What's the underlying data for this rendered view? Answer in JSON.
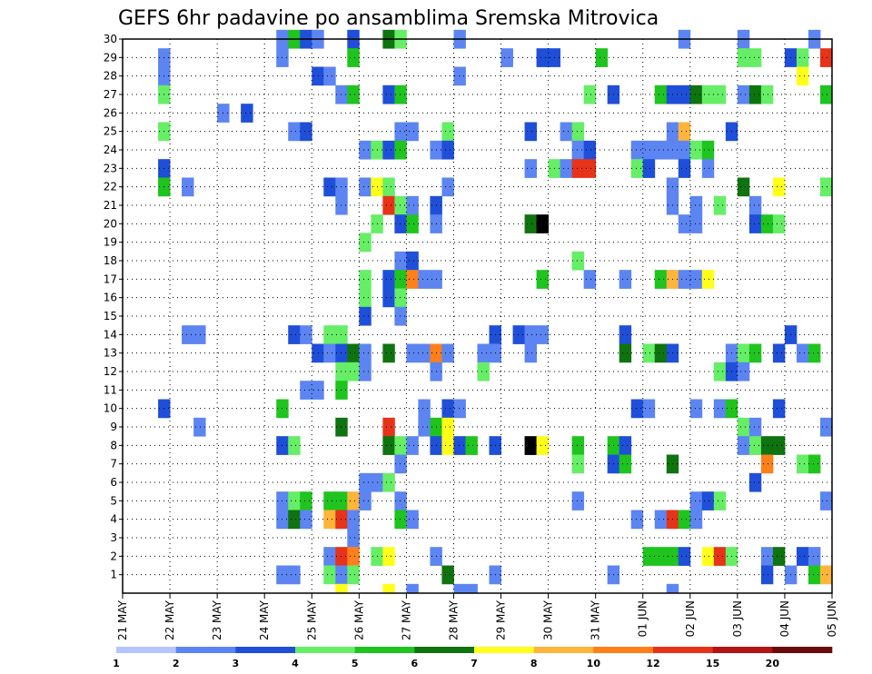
{
  "chart_data": {
    "type": "heatmap",
    "title": "GEFS 6hr padavine po ansamblima Sremska Mitrovica",
    "xlabel": "",
    "ylabel": "",
    "x_ticks": [
      "21 MAY",
      "22 MAY",
      "23 MAY",
      "24 MAY",
      "25 MAY",
      "26 MAY",
      "27 MAY",
      "28 MAY",
      "29 MAY",
      "30 MAY",
      "31 MAY",
      "01 JUN",
      "02 JUN",
      "03 JUN",
      "04 JUN",
      "05 JUN"
    ],
    "y_ticks": [
      1,
      2,
      3,
      4,
      5,
      6,
      7,
      8,
      9,
      10,
      11,
      12,
      13,
      14,
      15,
      16,
      17,
      18,
      19,
      20,
      21,
      22,
      23,
      24,
      25,
      26,
      27,
      28,
      29,
      30
    ],
    "x_range": [
      0,
      60
    ],
    "y_range": [
      0,
      30
    ],
    "grid": true,
    "colorbar": {
      "labels": [
        "1",
        "2",
        "3",
        "4",
        "5",
        "6",
        "7",
        "8",
        "10",
        "12",
        "15",
        "20"
      ],
      "colors": [
        "#b3c6ff",
        "#5c85f2",
        "#1f4fd9",
        "#66ee66",
        "#1fc41f",
        "#0f730f",
        "#ffff1a",
        "#ffb43a",
        "#ff7f1a",
        "#e63319",
        "#b31313",
        "#6b0a0a"
      ]
    },
    "cells": [
      [
        30,
        13,
        1
      ],
      [
        30,
        14,
        4
      ],
      [
        30,
        15,
        2
      ],
      [
        30,
        16,
        1
      ],
      [
        30,
        19,
        2
      ],
      [
        30,
        22,
        5
      ],
      [
        30,
        23,
        3
      ],
      [
        30,
        28,
        1
      ],
      [
        30,
        47,
        1
      ],
      [
        30,
        52,
        1
      ],
      [
        30,
        58,
        1
      ],
      [
        29,
        3,
        1
      ],
      [
        29,
        13,
        1
      ],
      [
        29,
        19,
        4
      ],
      [
        29,
        32,
        1
      ],
      [
        29,
        35,
        2
      ],
      [
        29,
        36,
        2
      ],
      [
        29,
        40,
        4
      ],
      [
        29,
        52,
        3
      ],
      [
        29,
        53,
        3
      ],
      [
        29,
        56,
        2
      ],
      [
        29,
        57,
        3
      ],
      [
        29,
        59,
        9
      ],
      [
        28,
        3,
        1
      ],
      [
        28,
        16,
        2
      ],
      [
        28,
        17,
        1
      ],
      [
        28,
        28,
        1
      ],
      [
        28,
        57,
        6
      ],
      [
        27,
        3,
        3
      ],
      [
        27,
        18,
        1
      ],
      [
        27,
        19,
        4
      ],
      [
        27,
        22,
        2
      ],
      [
        27,
        23,
        4
      ],
      [
        27,
        39,
        3
      ],
      [
        27,
        41,
        2
      ],
      [
        27,
        45,
        4
      ],
      [
        27,
        46,
        2
      ],
      [
        27,
        47,
        2
      ],
      [
        27,
        48,
        5
      ],
      [
        27,
        49,
        3
      ],
      [
        27,
        50,
        3
      ],
      [
        27,
        52,
        1
      ],
      [
        27,
        53,
        5
      ],
      [
        27,
        54,
        3
      ],
      [
        27,
        59,
        4
      ],
      [
        26,
        8,
        1
      ],
      [
        26,
        10,
        2
      ],
      [
        25,
        3,
        3
      ],
      [
        25,
        14,
        1
      ],
      [
        25,
        15,
        2
      ],
      [
        25,
        23,
        1
      ],
      [
        25,
        24,
        1
      ],
      [
        25,
        27,
        3
      ],
      [
        25,
        34,
        2
      ],
      [
        25,
        37,
        1
      ],
      [
        25,
        38,
        3
      ],
      [
        25,
        46,
        1
      ],
      [
        25,
        47,
        7
      ],
      [
        25,
        51,
        2
      ],
      [
        24,
        20,
        1
      ],
      [
        24,
        21,
        3
      ],
      [
        24,
        22,
        2
      ],
      [
        24,
        23,
        4
      ],
      [
        24,
        26,
        1
      ],
      [
        24,
        27,
        2
      ],
      [
        24,
        38,
        1
      ],
      [
        24,
        39,
        2
      ],
      [
        24,
        43,
        1
      ],
      [
        24,
        44,
        1
      ],
      [
        24,
        45,
        1
      ],
      [
        24,
        46,
        1
      ],
      [
        24,
        47,
        1
      ],
      [
        24,
        48,
        3
      ],
      [
        24,
        49,
        4
      ],
      [
        23,
        3,
        2
      ],
      [
        23,
        34,
        1
      ],
      [
        23,
        36,
        3
      ],
      [
        23,
        37,
        1
      ],
      [
        23,
        38,
        9
      ],
      [
        23,
        39,
        9
      ],
      [
        23,
        43,
        3
      ],
      [
        23,
        44,
        2
      ],
      [
        23,
        47,
        2
      ],
      [
        23,
        49,
        1
      ],
      [
        22,
        3,
        4
      ],
      [
        22,
        5,
        1
      ],
      [
        22,
        17,
        2
      ],
      [
        22,
        18,
        1
      ],
      [
        22,
        20,
        1
      ],
      [
        22,
        21,
        6
      ],
      [
        22,
        22,
        3
      ],
      [
        22,
        27,
        1
      ],
      [
        22,
        46,
        1
      ],
      [
        22,
        52,
        5
      ],
      [
        22,
        55,
        6
      ],
      [
        22,
        59,
        3
      ],
      [
        21,
        18,
        1
      ],
      [
        21,
        22,
        9
      ],
      [
        21,
        23,
        3
      ],
      [
        21,
        24,
        1
      ],
      [
        21,
        26,
        2
      ],
      [
        21,
        46,
        1
      ],
      [
        21,
        48,
        1
      ],
      [
        21,
        50,
        3
      ],
      [
        21,
        53,
        1
      ],
      [
        20,
        21,
        3
      ],
      [
        20,
        23,
        2
      ],
      [
        20,
        24,
        4
      ],
      [
        20,
        26,
        1
      ],
      [
        20,
        34,
        5
      ],
      [
        20,
        35,
        12
      ],
      [
        20,
        47,
        1
      ],
      [
        20,
        48,
        1
      ],
      [
        20,
        53,
        2
      ],
      [
        20,
        54,
        4
      ],
      [
        20,
        55,
        3
      ],
      [
        19,
        20,
        3
      ],
      [
        18,
        23,
        1
      ],
      [
        18,
        24,
        2
      ],
      [
        18,
        38,
        3
      ],
      [
        17,
        20,
        3
      ],
      [
        17,
        22,
        2
      ],
      [
        17,
        23,
        4
      ],
      [
        17,
        24,
        8
      ],
      [
        17,
        25,
        1
      ],
      [
        17,
        26,
        1
      ],
      [
        17,
        35,
        4
      ],
      [
        17,
        39,
        1
      ],
      [
        17,
        42,
        1
      ],
      [
        17,
        45,
        4
      ],
      [
        17,
        46,
        7
      ],
      [
        17,
        47,
        1
      ],
      [
        17,
        48,
        1
      ],
      [
        17,
        49,
        6
      ],
      [
        16,
        20,
        3
      ],
      [
        16,
        22,
        2
      ],
      [
        16,
        23,
        3
      ],
      [
        15,
        20,
        2
      ],
      [
        15,
        23,
        1
      ],
      [
        14,
        5,
        1
      ],
      [
        14,
        6,
        1
      ],
      [
        14,
        14,
        2
      ],
      [
        14,
        15,
        1
      ],
      [
        14,
        17,
        3
      ],
      [
        14,
        18,
        3
      ],
      [
        14,
        31,
        2
      ],
      [
        14,
        33,
        2
      ],
      [
        14,
        34,
        1
      ],
      [
        14,
        35,
        1
      ],
      [
        14,
        42,
        2
      ],
      [
        14,
        56,
        2
      ],
      [
        13,
        16,
        2
      ],
      [
        13,
        17,
        1
      ],
      [
        13,
        18,
        2
      ],
      [
        13,
        19,
        5
      ],
      [
        13,
        20,
        1
      ],
      [
        13,
        22,
        5
      ],
      [
        13,
        24,
        1
      ],
      [
        13,
        25,
        1
      ],
      [
        13,
        26,
        8
      ],
      [
        13,
        27,
        1
      ],
      [
        13,
        30,
        1
      ],
      [
        13,
        31,
        1
      ],
      [
        13,
        34,
        1
      ],
      [
        13,
        42,
        5
      ],
      [
        13,
        44,
        3
      ],
      [
        13,
        45,
        5
      ],
      [
        13,
        46,
        2
      ],
      [
        13,
        51,
        1
      ],
      [
        13,
        52,
        3
      ],
      [
        13,
        53,
        4
      ],
      [
        13,
        55,
        2
      ],
      [
        13,
        57,
        1
      ],
      [
        13,
        58,
        4
      ],
      [
        12,
        18,
        3
      ],
      [
        12,
        19,
        3
      ],
      [
        12,
        20,
        1
      ],
      [
        12,
        26,
        1
      ],
      [
        12,
        30,
        3
      ],
      [
        12,
        50,
        3
      ],
      [
        12,
        51,
        2
      ],
      [
        12,
        52,
        1
      ],
      [
        11,
        15,
        1
      ],
      [
        11,
        16,
        1
      ],
      [
        11,
        18,
        4
      ],
      [
        10,
        3,
        2
      ],
      [
        10,
        13,
        4
      ],
      [
        10,
        25,
        1
      ],
      [
        10,
        27,
        2
      ],
      [
        10,
        28,
        1
      ],
      [
        10,
        43,
        2
      ],
      [
        10,
        44,
        1
      ],
      [
        10,
        48,
        1
      ],
      [
        10,
        50,
        1
      ],
      [
        10,
        51,
        4
      ],
      [
        10,
        55,
        2
      ],
      [
        9,
        6,
        1
      ],
      [
        9,
        18,
        5
      ],
      [
        9,
        22,
        9
      ],
      [
        9,
        25,
        1
      ],
      [
        9,
        26,
        4
      ],
      [
        9,
        27,
        6
      ],
      [
        9,
        52,
        3
      ],
      [
        9,
        53,
        1
      ],
      [
        9,
        59,
        1
      ],
      [
        8,
        13,
        2
      ],
      [
        8,
        14,
        3
      ],
      [
        8,
        22,
        5
      ],
      [
        8,
        23,
        3
      ],
      [
        8,
        24,
        1
      ],
      [
        8,
        26,
        2
      ],
      [
        8,
        27,
        6
      ],
      [
        8,
        28,
        2
      ],
      [
        8,
        29,
        4
      ],
      [
        8,
        31,
        2
      ],
      [
        8,
        34,
        12
      ],
      [
        8,
        35,
        6
      ],
      [
        8,
        38,
        4
      ],
      [
        8,
        41,
        4
      ],
      [
        8,
        42,
        2
      ],
      [
        8,
        52,
        1
      ],
      [
        8,
        53,
        3
      ],
      [
        8,
        54,
        5
      ],
      [
        8,
        55,
        5
      ],
      [
        7,
        23,
        1
      ],
      [
        7,
        38,
        3
      ],
      [
        7,
        41,
        2
      ],
      [
        7,
        42,
        4
      ],
      [
        7,
        46,
        5
      ],
      [
        7,
        54,
        8
      ],
      [
        7,
        57,
        3
      ],
      [
        7,
        58,
        4
      ],
      [
        6,
        20,
        1
      ],
      [
        6,
        21,
        1
      ],
      [
        6,
        22,
        3
      ],
      [
        6,
        53,
        2
      ],
      [
        5,
        13,
        1
      ],
      [
        5,
        14,
        3
      ],
      [
        5,
        15,
        4
      ],
      [
        5,
        17,
        4
      ],
      [
        5,
        18,
        4
      ],
      [
        5,
        19,
        7
      ],
      [
        5,
        20,
        1
      ],
      [
        5,
        23,
        1
      ],
      [
        5,
        38,
        1
      ],
      [
        5,
        48,
        1
      ],
      [
        5,
        49,
        2
      ],
      [
        5,
        50,
        3
      ],
      [
        5,
        59,
        1
      ],
      [
        4,
        13,
        1
      ],
      [
        4,
        14,
        5
      ],
      [
        4,
        15,
        1
      ],
      [
        4,
        17,
        7
      ],
      [
        4,
        18,
        9
      ],
      [
        4,
        19,
        1
      ],
      [
        4,
        23,
        4
      ],
      [
        4,
        24,
        1
      ],
      [
        4,
        43,
        1
      ],
      [
        4,
        45,
        1
      ],
      [
        4,
        46,
        9
      ],
      [
        4,
        47,
        4
      ],
      [
        4,
        48,
        1
      ],
      [
        3,
        19,
        1
      ],
      [
        2,
        17,
        1
      ],
      [
        2,
        18,
        9
      ],
      [
        2,
        19,
        8
      ],
      [
        2,
        21,
        3
      ],
      [
        2,
        22,
        6
      ],
      [
        2,
        26,
        1
      ],
      [
        2,
        44,
        4
      ],
      [
        2,
        45,
        4
      ],
      [
        2,
        46,
        4
      ],
      [
        2,
        47,
        2
      ],
      [
        2,
        49,
        6
      ],
      [
        2,
        50,
        9
      ],
      [
        2,
        51,
        3
      ],
      [
        2,
        54,
        1
      ],
      [
        2,
        55,
        5
      ],
      [
        2,
        57,
        2
      ],
      [
        2,
        58,
        1
      ],
      [
        1,
        13,
        1
      ],
      [
        1,
        14,
        1
      ],
      [
        1,
        17,
        3
      ],
      [
        1,
        18,
        1
      ],
      [
        1,
        19,
        3
      ],
      [
        1,
        27,
        5
      ],
      [
        1,
        31,
        1
      ],
      [
        1,
        41,
        1
      ],
      [
        1,
        54,
        2
      ],
      [
        1,
        56,
        1
      ],
      [
        1,
        58,
        4
      ],
      [
        1,
        59,
        7
      ],
      [
        0,
        18,
        6
      ],
      [
        0,
        22,
        6
      ],
      [
        0,
        24,
        1
      ],
      [
        0,
        28,
        1
      ],
      [
        0,
        29,
        1
      ],
      [
        0,
        46,
        1
      ]
    ]
  }
}
